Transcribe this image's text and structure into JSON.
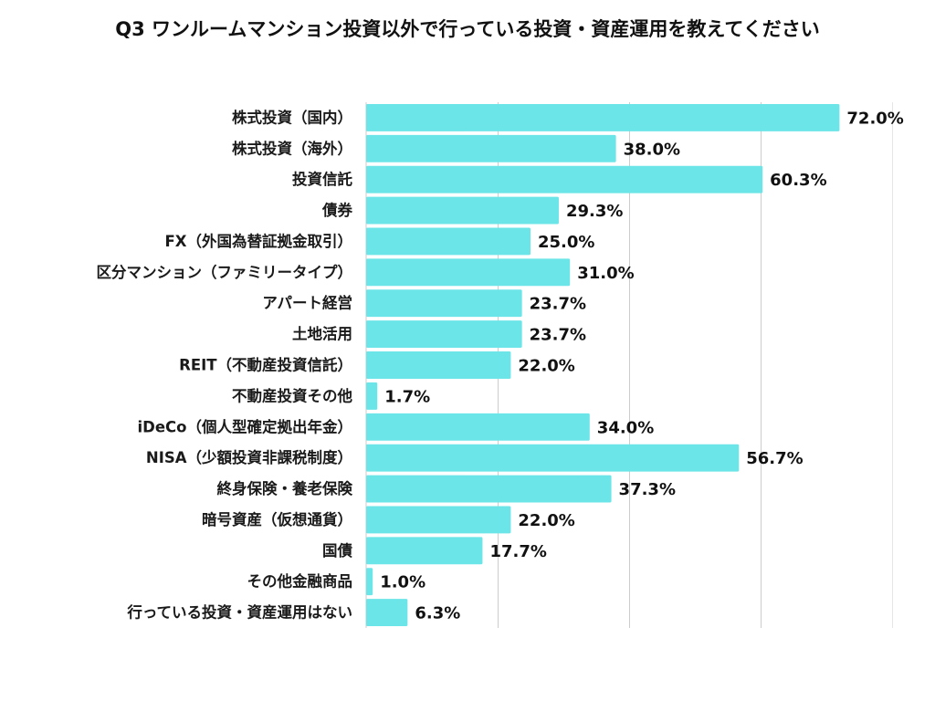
{
  "chart_data": {
    "type": "bar",
    "orientation": "horizontal",
    "title": "Q3 ワンルームマンション投資以外で行っている投資・資産運用を教えてください",
    "xlabel": "",
    "ylabel": "",
    "xlim": [
      0,
      80
    ],
    "grid": true,
    "gridline_values": [
      20,
      40,
      60,
      80
    ],
    "legend": "none",
    "bar_color": "#6be5e8",
    "gridline_color": "#cccccc",
    "categories": [
      "株式投資（国内）",
      "株式投資（海外）",
      "投資信託",
      "債券",
      "FX（外国為替証拠金取引）",
      "区分マンション（ファミリータイプ）",
      "アパート経営",
      "土地活用",
      "REIT（不動産投資信託）",
      "不動産投資その他",
      "iDeCo（個人型確定拠出年金）",
      "NISA（少額投資非課税制度）",
      "終身保険・養老保険",
      "暗号資産（仮想通貨）",
      "国債",
      "その他金融商品",
      "行っている投資・資産運用はない"
    ],
    "values": [
      72.0,
      38.0,
      60.3,
      29.3,
      25.0,
      31.0,
      23.7,
      23.7,
      22.0,
      1.7,
      34.0,
      56.7,
      37.3,
      22.0,
      17.7,
      1.0,
      6.3
    ],
    "value_labels": [
      "72.0%",
      "38.0%",
      "60.3%",
      "29.3%",
      "25.0%",
      "31.0%",
      "23.7%",
      "23.7%",
      "22.0%",
      "1.7%",
      "34.0%",
      "56.7%",
      "37.3%",
      "22.0%",
      "17.7%",
      "1.0%",
      "6.3%"
    ],
    "unit": "%"
  }
}
